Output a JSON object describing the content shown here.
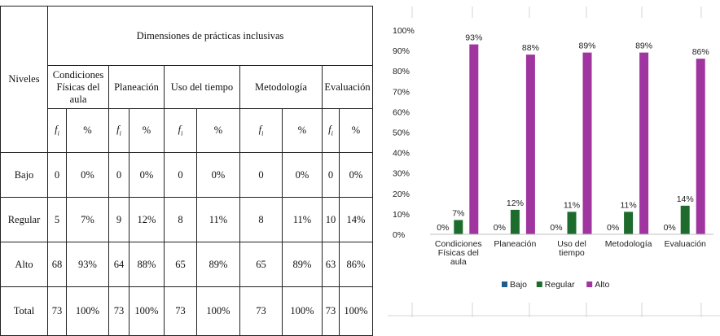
{
  "table": {
    "header_main": "Dimensiones de prácticas inclusivas",
    "row_header": "Niveles",
    "dimensions": [
      "Condiciones Físicas del aula",
      "Planeación",
      "Uso del tiempo",
      "Metodología",
      "Evaluación"
    ],
    "fi_label": "f",
    "fi_sub": "i",
    "pct_label": "%",
    "rows": [
      {
        "level": "Bajo",
        "cells": [
          "0",
          "0%",
          "0",
          "0%",
          "0",
          "0%",
          "0",
          "0%",
          "0",
          "0%"
        ]
      },
      {
        "level": "Regular",
        "cells": [
          "5",
          "7%",
          "9",
          "12%",
          "8",
          "11%",
          "8",
          "11%",
          "10",
          "14%"
        ]
      },
      {
        "level": "Alto",
        "cells": [
          "68",
          "93%",
          "64",
          "88%",
          "65",
          "89%",
          "65",
          "89%",
          "63",
          "86%"
        ]
      },
      {
        "level": "Total",
        "cells": [
          "73",
          "100%",
          "73",
          "100%",
          "73",
          "100%",
          "73",
          "100%",
          "73",
          "100%"
        ]
      }
    ]
  },
  "chart_data": {
    "type": "bar",
    "categories": [
      [
        "Condiciones",
        "Físicas del",
        "aula"
      ],
      [
        "Planeación"
      ],
      [
        "Uso del",
        "tiempo"
      ],
      [
        "Metodología"
      ],
      [
        "Evaluación"
      ]
    ],
    "series": [
      {
        "name": "Bajo",
        "color": "#1f5c8b",
        "values": [
          0,
          0,
          0,
          0,
          0
        ],
        "labels": [
          "0%",
          "0%",
          "0%",
          "0%",
          "0%"
        ]
      },
      {
        "name": "Regular",
        "color": "#1e6b2e",
        "values": [
          7,
          12,
          11,
          11,
          14
        ],
        "labels": [
          "7%",
          "12%",
          "11%",
          "11%",
          "14%"
        ]
      },
      {
        "name": "Alto",
        "color": "#a0359f",
        "values": [
          93,
          88,
          89,
          89,
          86
        ],
        "labels": [
          "93%",
          "88%",
          "89%",
          "89%",
          "86%"
        ]
      }
    ],
    "ylim": [
      0,
      100
    ],
    "yticks": [
      "0%",
      "10%",
      "20%",
      "30%",
      "40%",
      "50%",
      "60%",
      "70%",
      "80%",
      "90%",
      "100%"
    ],
    "legend_position": "bottom",
    "grid": false
  }
}
